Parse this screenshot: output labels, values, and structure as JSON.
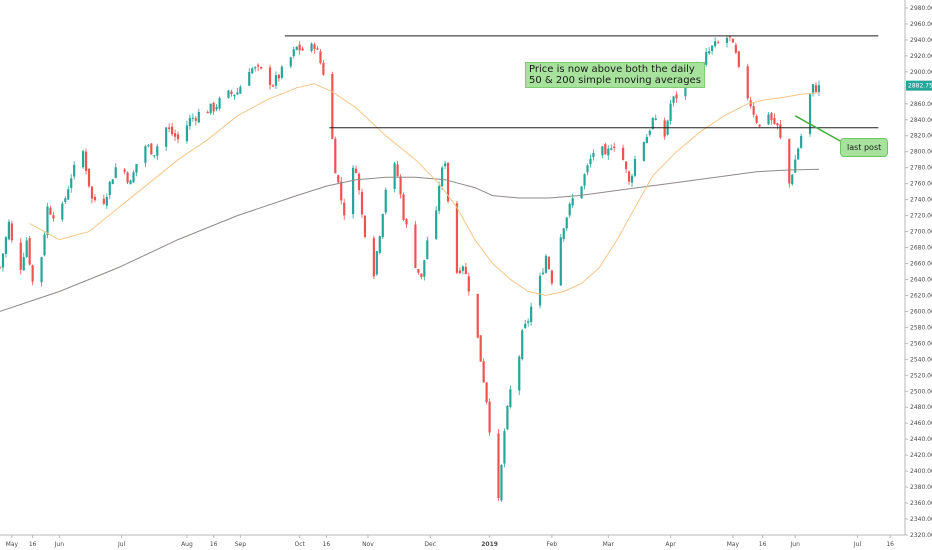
{
  "annotations": {
    "main_line1": "Price is now above both the daily",
    "main_line2": "50 & 200 simple moving averages",
    "last_post": "last post"
  },
  "price_badge": "2882.75",
  "colors": {
    "up": "#26a69a",
    "down": "#ef5350",
    "ma50": "#f5c58a",
    "ma200": "#8f8a87",
    "resistance": "#1f1f1f",
    "badge": "#26a69a",
    "note_bg": "#a6e29c",
    "arrow": "#3fae3a"
  },
  "chart_data": {
    "type": "candlestick",
    "title": "",
    "ylim": [
      2320,
      2990
    ],
    "y_ticks": [
      "2980.00",
      "2960.00",
      "2940.00",
      "2920.00",
      "2900.00",
      "2880.00",
      "2860.00",
      "2840.00",
      "2820.00",
      "2800.00",
      "2780.00",
      "2760.00",
      "2740.00",
      "2720.00",
      "2700.00",
      "2680.00",
      "2660.00",
      "2640.00",
      "2620.00",
      "2600.00",
      "2580.00",
      "2560.00",
      "2540.00",
      "2520.00",
      "2500.00",
      "2480.00",
      "2460.00",
      "2440.00",
      "2420.00",
      "2400.00",
      "2380.00",
      "2360.00",
      "2340.00",
      "2320.00"
    ],
    "x_ticks": [
      {
        "label": "May",
        "day": 4,
        "bold": false
      },
      {
        "label": "16",
        "day": 11,
        "bold": false
      },
      {
        "label": "Jun",
        "day": 20,
        "bold": false
      },
      {
        "label": "Jul",
        "day": 41,
        "bold": false
      },
      {
        "label": "Aug",
        "day": 63,
        "bold": false
      },
      {
        "label": "16",
        "day": 72,
        "bold": false
      },
      {
        "label": "Sep",
        "day": 81,
        "bold": false
      },
      {
        "label": "Oct",
        "day": 101,
        "bold": false
      },
      {
        "label": "16",
        "day": 110,
        "bold": false
      },
      {
        "label": "Nov",
        "day": 124,
        "bold": false
      },
      {
        "label": "Dec",
        "day": 145,
        "bold": false
      },
      {
        "label": "2019",
        "day": 165,
        "bold": true
      },
      {
        "label": "Feb",
        "day": 186,
        "bold": false
      },
      {
        "label": "Mar",
        "day": 205,
        "bold": false
      },
      {
        "label": "Apr",
        "day": 226,
        "bold": false
      },
      {
        "label": "May",
        "day": 247,
        "bold": false
      },
      {
        "label": "16",
        "day": 257,
        "bold": false
      },
      {
        "label": "Jun",
        "day": 268,
        "bold": false
      },
      {
        "label": "Jul",
        "day": 289,
        "bold": false
      },
      {
        "label": "16",
        "day": 300,
        "bold": false
      }
    ],
    "price_path": [
      [
        0,
        2655
      ],
      [
        3,
        2710
      ],
      [
        6,
        2640
      ],
      [
        9,
        2690
      ],
      [
        12,
        2610
      ],
      [
        16,
        2730
      ],
      [
        20,
        2715
      ],
      [
        24,
        2770
      ],
      [
        28,
        2800
      ],
      [
        31,
        2740
      ],
      [
        35,
        2740
      ],
      [
        40,
        2790
      ],
      [
        44,
        2760
      ],
      [
        48,
        2810
      ],
      [
        52,
        2800
      ],
      [
        56,
        2830
      ],
      [
        60,
        2815
      ],
      [
        64,
        2840
      ],
      [
        68,
        2850
      ],
      [
        72,
        2855
      ],
      [
        76,
        2870
      ],
      [
        80,
        2875
      ],
      [
        84,
        2905
      ],
      [
        88,
        2900
      ],
      [
        92,
        2885
      ],
      [
        96,
        2905
      ],
      [
        100,
        2930
      ],
      [
        104,
        2925
      ],
      [
        106,
        2935
      ],
      [
        109,
        2900
      ],
      [
        111,
        2850
      ],
      [
        113,
        2780
      ],
      [
        115,
        2740
      ],
      [
        116,
        2725
      ],
      [
        118,
        2770
      ],
      [
        120,
        2780
      ],
      [
        122,
        2720
      ],
      [
        124,
        2680
      ],
      [
        126,
        2650
      ],
      [
        128,
        2700
      ],
      [
        130,
        2755
      ],
      [
        132,
        2790
      ],
      [
        134,
        2770
      ],
      [
        136,
        2720
      ],
      [
        138,
        2690
      ],
      [
        140,
        2660
      ],
      [
        142,
        2640
      ],
      [
        144,
        2690
      ],
      [
        146,
        2680
      ],
      [
        148,
        2760
      ],
      [
        150,
        2790
      ],
      [
        152,
        2690
      ],
      [
        154,
        2650
      ],
      [
        156,
        2660
      ],
      [
        158,
        2630
      ],
      [
        160,
        2590
      ],
      [
        162,
        2540
      ],
      [
        164,
        2490
      ],
      [
        166,
        2420
      ],
      [
        168,
        2360
      ],
      [
        170,
        2450
      ],
      [
        172,
        2500
      ],
      [
        174,
        2520
      ],
      [
        176,
        2570
      ],
      [
        178,
        2590
      ],
      [
        180,
        2620
      ],
      [
        182,
        2640
      ],
      [
        184,
        2670
      ],
      [
        186,
        2640
      ],
      [
        188,
        2680
      ],
      [
        190,
        2710
      ],
      [
        192,
        2730
      ],
      [
        194,
        2750
      ],
      [
        196,
        2760
      ],
      [
        198,
        2780
      ],
      [
        200,
        2800
      ],
      [
        202,
        2810
      ],
      [
        204,
        2790
      ],
      [
        206,
        2810
      ],
      [
        208,
        2810
      ],
      [
        210,
        2790
      ],
      [
        212,
        2760
      ],
      [
        214,
        2790
      ],
      [
        216,
        2810
      ],
      [
        218,
        2820
      ],
      [
        220,
        2840
      ],
      [
        222,
        2830
      ],
      [
        224,
        2820
      ],
      [
        226,
        2860
      ],
      [
        228,
        2870
      ],
      [
        230,
        2880
      ],
      [
        232,
        2890
      ],
      [
        234,
        2900
      ],
      [
        236,
        2910
      ],
      [
        238,
        2920
      ],
      [
        240,
        2930
      ],
      [
        242,
        2935
      ],
      [
        244,
        2945
      ],
      [
        246,
        2940
      ],
      [
        248,
        2920
      ],
      [
        250,
        2880
      ],
      [
        252,
        2870
      ],
      [
        254,
        2850
      ],
      [
        256,
        2830
      ],
      [
        258,
        2860
      ],
      [
        260,
        2840
      ],
      [
        262,
        2830
      ],
      [
        264,
        2800
      ],
      [
        266,
        2760
      ],
      [
        268,
        2790
      ],
      [
        270,
        2820
      ],
      [
        272,
        2860
      ],
      [
        274,
        2880
      ],
      [
        276,
        2880
      ]
    ],
    "ma50": [
      [
        10,
        2710
      ],
      [
        20,
        2690
      ],
      [
        30,
        2700
      ],
      [
        40,
        2730
      ],
      [
        50,
        2760
      ],
      [
        60,
        2790
      ],
      [
        70,
        2815
      ],
      [
        80,
        2845
      ],
      [
        90,
        2865
      ],
      [
        100,
        2880
      ],
      [
        106,
        2885
      ],
      [
        112,
        2875
      ],
      [
        120,
        2855
      ],
      [
        130,
        2820
      ],
      [
        140,
        2790
      ],
      [
        148,
        2760
      ],
      [
        154,
        2730
      ],
      [
        160,
        2690
      ],
      [
        166,
        2660
      ],
      [
        172,
        2640
      ],
      [
        178,
        2625
      ],
      [
        184,
        2620
      ],
      [
        190,
        2625
      ],
      [
        196,
        2635
      ],
      [
        202,
        2655
      ],
      [
        208,
        2690
      ],
      [
        214,
        2730
      ],
      [
        220,
        2770
      ],
      [
        228,
        2800
      ],
      [
        236,
        2825
      ],
      [
        244,
        2845
      ],
      [
        252,
        2860
      ],
      [
        258,
        2865
      ],
      [
        264,
        2868
      ],
      [
        270,
        2872
      ],
      [
        276,
        2874
      ]
    ],
    "ma200": [
      [
        0,
        2600
      ],
      [
        20,
        2625
      ],
      [
        40,
        2655
      ],
      [
        60,
        2690
      ],
      [
        80,
        2720
      ],
      [
        100,
        2745
      ],
      [
        110,
        2757
      ],
      [
        120,
        2765
      ],
      [
        130,
        2768
      ],
      [
        140,
        2768
      ],
      [
        150,
        2765
      ],
      [
        160,
        2755
      ],
      [
        166,
        2745
      ],
      [
        175,
        2742
      ],
      [
        185,
        2742
      ],
      [
        195,
        2745
      ],
      [
        205,
        2750
      ],
      [
        215,
        2755
      ],
      [
        225,
        2760
      ],
      [
        235,
        2765
      ],
      [
        245,
        2770
      ],
      [
        255,
        2775
      ],
      [
        265,
        2777
      ],
      [
        276,
        2778
      ]
    ],
    "resistance_lines": [
      {
        "price": 2945,
        "from_day": 96,
        "to_day": 296
      },
      {
        "price": 2830,
        "from_day": 111,
        "to_day": 296
      }
    ],
    "last_post_point": {
      "day": 268,
      "price": 2845
    }
  }
}
